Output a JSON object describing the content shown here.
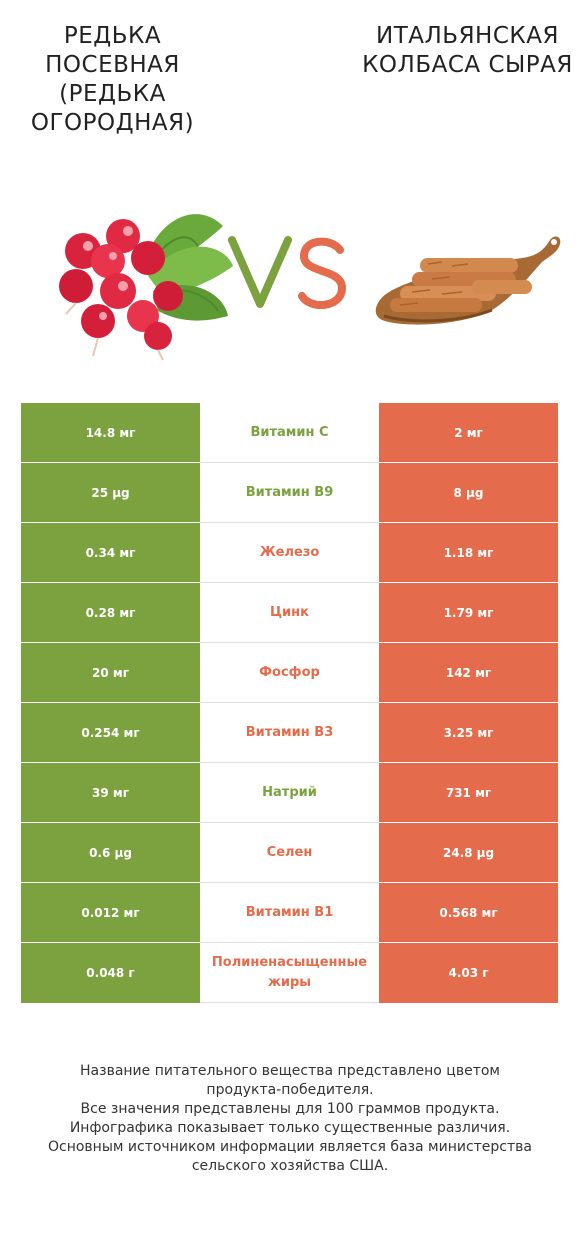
{
  "header": {
    "left_title": "Редька посевная (Редька огородная)",
    "right_title": "Итальянская колбаса сырая",
    "vs_text": "VS"
  },
  "colors": {
    "winner_left": "#7ba23f",
    "winner_right": "#e46b4b"
  },
  "rows": [
    {
      "left": "14.8 мг",
      "name": "Витамин C",
      "right": "2 мг",
      "winner": "left"
    },
    {
      "left": "25 µg",
      "name": "Витамин B9",
      "right": "8 µg",
      "winner": "left"
    },
    {
      "left": "0.34 мг",
      "name": "Железо",
      "right": "1.18 мг",
      "winner": "right"
    },
    {
      "left": "0.28 мг",
      "name": "Цинк",
      "right": "1.79 мг",
      "winner": "right"
    },
    {
      "left": "20 мг",
      "name": "Фосфор",
      "right": "142 мг",
      "winner": "right"
    },
    {
      "left": "0.254 мг",
      "name": "Витамин B3",
      "right": "3.25 мг",
      "winner": "right"
    },
    {
      "left": "39 мг",
      "name": "Натрий",
      "right": "731 мг",
      "winner": "left"
    },
    {
      "left": "0.6 µg",
      "name": "Селен",
      "right": "24.8 µg",
      "winner": "right"
    },
    {
      "left": "0.012 мг",
      "name": "Витамин B1",
      "right": "0.568 мг",
      "winner": "right"
    },
    {
      "left": "0.048 г",
      "name": "Полиненасыщенные жиры",
      "right": "4.03 г",
      "winner": "right"
    }
  ],
  "footer": {
    "line1": "Название питательного вещества представлено цветом",
    "line2": "продукта-победителя.",
    "line3": "Все значения представлены для 100 граммов продукта.",
    "line4": "Инфографика показывает только существенные различия.",
    "line5": "Основным источником информации является база министерства",
    "line6": "сельского хозяйства США."
  }
}
